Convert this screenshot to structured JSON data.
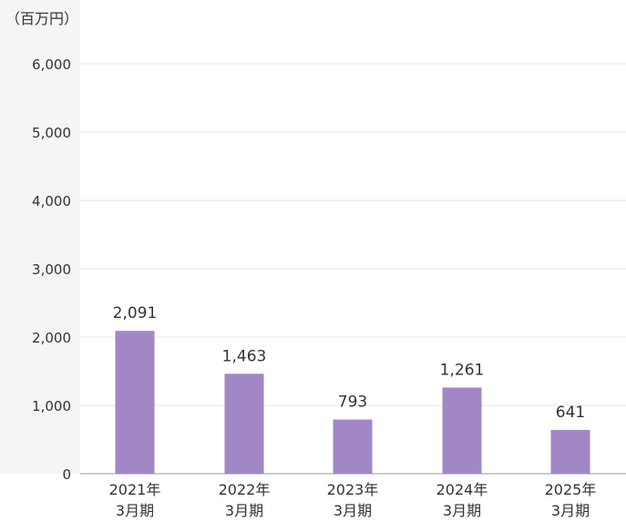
{
  "chart_data": {
    "type": "bar",
    "unit": "（百万円）",
    "categories": [
      [
        "2021年",
        "3月期"
      ],
      [
        "2022年",
        "3月期"
      ],
      [
        "2023年",
        "3月期"
      ],
      [
        "2024年",
        "3月期"
      ],
      [
        "2025年",
        "3月期"
      ]
    ],
    "values": [
      2091,
      1463,
      793,
      1261,
      641
    ],
    "value_labels": [
      "2,091",
      "1,463",
      "793",
      "1,261",
      "641"
    ],
    "y_ticks": [
      0,
      1000,
      2000,
      3000,
      4000,
      5000,
      6000
    ],
    "y_tick_labels": [
      "0",
      "1,000",
      "2,000",
      "3,000",
      "4,000",
      "5,000",
      "6,000"
    ],
    "ylim": [
      0,
      6000
    ],
    "grid": true,
    "legend": "none",
    "colors": {
      "bar": "#a287c6",
      "grid": "#e6e6e6",
      "axis": "#999999",
      "y_panel": "#f5f5f5",
      "text": "#333333"
    }
  }
}
